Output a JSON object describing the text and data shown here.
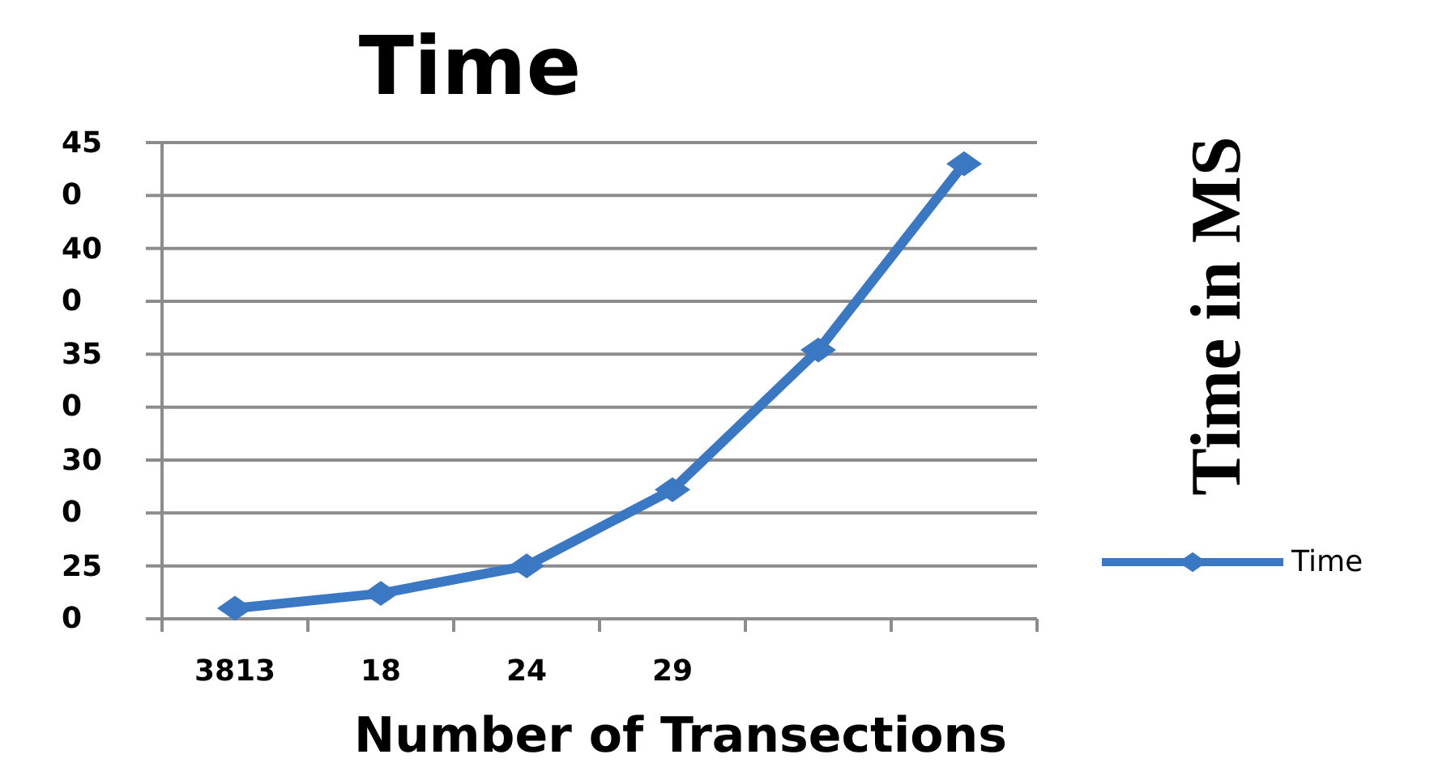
{
  "chart_data": {
    "type": "line",
    "title": "Time",
    "xlabel": "Number of Transections",
    "y2label": "Time in MS",
    "categories": [
      "3813",
      "18",
      "24",
      "29",
      null,
      null
    ],
    "series": [
      {
        "name": "Time",
        "color": "#3b78c4",
        "values": [
          230,
          237,
          250,
          286,
          352,
          440
        ]
      }
    ],
    "ylim": [
      225,
      450
    ],
    "yticks": [
      {
        "value": 250,
        "label": "250"
      },
      {
        "value": 275,
        "label": null
      },
      {
        "value": 300,
        "label": "300"
      },
      {
        "value": 325,
        "label": null
      },
      {
        "value": 350,
        "label": "350"
      },
      {
        "value": 375,
        "label": null
      },
      {
        "value": 400,
        "label": "400"
      },
      {
        "value": 425,
        "label": null
      },
      {
        "value": 450,
        "label": "450"
      }
    ],
    "grid": "y",
    "legend": "right",
    "marker": "diamond",
    "line_style": "solid"
  }
}
